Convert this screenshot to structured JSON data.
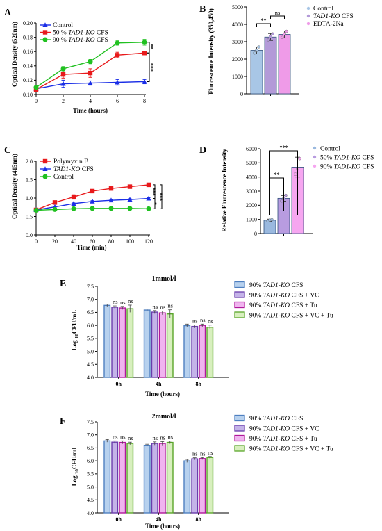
{
  "colors": {
    "red": "#e8191b",
    "blue": "#1a2ee6",
    "green": "#21c121",
    "b_blue": "#a8c6e6",
    "b_purple": "#b39ad8",
    "b_pink": "#ef9be8",
    "d_blue": "#9ab9df",
    "d_purple": "#b89ce0",
    "d_pink": "#f6a6f0",
    "e_blue": "#b7d1ee",
    "e_purple": "#c4b3e8",
    "e_pink": "#f0b4ef",
    "e_green": "#d8efbe",
    "e_blue_edge": "#4e7fc0",
    "e_purple_edge": "#6a3dac",
    "e_pink_edge": "#b0189a",
    "e_green_edge": "#5aa62a"
  },
  "chart_data": [
    {
      "id": "A",
      "panel_label": "A",
      "type": "line",
      "xlabel": "Time (hours)",
      "ylabel": "Optical Density (520nm)",
      "xlim": [
        0,
        8
      ],
      "ylim": [
        0.1,
        0.2
      ],
      "xticks": [
        "0",
        "2",
        "4",
        "6",
        "8"
      ],
      "yticks": [
        "0.10",
        "0.12",
        "0.14",
        "0.16",
        "0.18",
        "0.20"
      ],
      "x": [
        0,
        2,
        4,
        6,
        8
      ],
      "series": [
        {
          "name": "Control",
          "color": "blue",
          "marker": "triangle",
          "values": [
            0.108,
            0.115,
            0.116,
            0.117,
            0.118
          ],
          "err": [
            0.003,
            0.005,
            0.003,
            0.004,
            0.003
          ]
        },
        {
          "name": "50 % TAD1-KO CFS",
          "color": "red",
          "marker": "square",
          "values": [
            0.107,
            0.128,
            0.13,
            0.155,
            0.158
          ],
          "err": [
            0.002,
            0.005,
            0.006,
            0.004,
            0.002
          ]
        },
        {
          "name": "90 % TAD1-KO CFS",
          "color": "green",
          "marker": "circle",
          "values": [
            0.11,
            0.136,
            0.146,
            0.172,
            0.173
          ],
          "err": [
            0.002,
            0.003,
            0.003,
            0.003,
            0.004
          ]
        }
      ],
      "significance": [
        "**",
        "***"
      ]
    },
    {
      "id": "B",
      "panel_label": "B",
      "type": "bar",
      "ylabel": "Fluorescence Intensity (350,450)",
      "ylim": [
        0,
        5000
      ],
      "yticks": [
        "0",
        "1000",
        "2000",
        "3000",
        "4000",
        "5000"
      ],
      "series": [
        {
          "name": "Control",
          "color": "b_blue",
          "value": 2500,
          "err": 200,
          "points": [
            2350,
            2500,
            2700
          ]
        },
        {
          "name": "TAD1-KO CFS",
          "color": "b_purple",
          "value": 3270,
          "err": 200,
          "points": [
            3100,
            3300,
            3450
          ]
        },
        {
          "name": "EDTA-2Na",
          "color": "b_pink",
          "value": 3420,
          "err": 200,
          "points": [
            3250,
            3450,
            3600
          ]
        }
      ],
      "significance": [
        "**",
        "ns"
      ]
    },
    {
      "id": "C",
      "panel_label": "C",
      "type": "line",
      "xlabel": "Time (min)",
      "ylabel": "Optical Density (415nm)",
      "xlim": [
        0,
        120
      ],
      "ylim": [
        0.0,
        2.0
      ],
      "xticks": [
        "0",
        "20",
        "40",
        "60",
        "80",
        "100",
        "120"
      ],
      "yticks": [
        "0.0",
        "0.5",
        "1.0",
        "1.5",
        "2.0"
      ],
      "x": [
        0,
        20,
        40,
        60,
        80,
        100,
        120
      ],
      "series": [
        {
          "name": "Polymyxin B",
          "color": "red",
          "marker": "square",
          "values": [
            0.68,
            0.88,
            1.03,
            1.19,
            1.26,
            1.31,
            1.36
          ],
          "err": [
            0.03,
            0.04,
            0.06,
            0.03,
            0.02,
            0.02,
            0.02
          ]
        },
        {
          "name": "TAD1-KO CFS",
          "color": "blue",
          "marker": "triangle",
          "values": [
            0.68,
            0.76,
            0.85,
            0.91,
            0.94,
            0.96,
            0.99
          ],
          "err": [
            0.02,
            0.02,
            0.02,
            0.02,
            0.02,
            0.02,
            0.02
          ]
        },
        {
          "name": "Control",
          "color": "green",
          "marker": "circle",
          "values": [
            0.67,
            0.69,
            0.71,
            0.72,
            0.72,
            0.72,
            0.71
          ],
          "err": [
            0.01,
            0.01,
            0.01,
            0.01,
            0.01,
            0.01,
            0.01
          ]
        }
      ],
      "significance": [
        "***",
        "*",
        "***"
      ]
    },
    {
      "id": "D",
      "panel_label": "D",
      "type": "bar",
      "ylabel": "Relative Fluorescence Intensity",
      "ylim": [
        0,
        6000
      ],
      "yticks": [
        "0",
        "1000",
        "2000",
        "3000",
        "4000",
        "5000",
        "6000"
      ],
      "series": [
        {
          "name": "Control",
          "color": "d_blue",
          "value": 940,
          "err": 80,
          "points": [
            900,
            950,
            980
          ]
        },
        {
          "name": "50% TAD1-KO CFS",
          "color": "d_purple",
          "value": 2490,
          "err": 200,
          "points": [
            2300,
            2500,
            2700
          ]
        },
        {
          "name": "90% TAD1-KO CFS",
          "color": "d_pink",
          "value": 4700,
          "err": 700,
          "points": [
            4200,
            4600,
            5300
          ]
        }
      ],
      "significance": [
        "**",
        "***"
      ]
    },
    {
      "id": "E",
      "panel_label": "E",
      "type": "bar",
      "title": "1mmol/l",
      "xlabel": "Time (hours)",
      "ylabel": "Log10CFU/mL",
      "ylim": [
        4.0,
        7.5
      ],
      "yticks": [
        "4.0",
        "4.5",
        "5.0",
        "5.5",
        "6.0",
        "6.5",
        "7.0",
        "7.5"
      ],
      "categories": [
        "0h",
        "4h",
        "8h"
      ],
      "series": [
        {
          "name": "90% TAD1-KO CFS",
          "color": "e_blue",
          "edge": "e_blue_edge",
          "values": [
            6.77,
            6.59,
            5.99
          ],
          "err": [
            0.05,
            0.04,
            0.06
          ]
        },
        {
          "name": "90% TAD1-KO CFS + VC",
          "color": "e_purple",
          "edge": "e_purple_edge",
          "values": [
            6.7,
            6.51,
            5.96
          ],
          "err": [
            0.05,
            0.06,
            0.06
          ]
        },
        {
          "name": "90% TAD1-KO CFS + Tu",
          "color": "e_pink",
          "edge": "e_pink_edge",
          "values": [
            6.67,
            6.48,
            6.0
          ],
          "err": [
            0.06,
            0.07,
            0.05
          ]
        },
        {
          "name": "90% TAD1-KO CFS + VC + Tu",
          "color": "e_green",
          "edge": "e_green_edge",
          "values": [
            6.64,
            6.44,
            5.93
          ],
          "err": [
            0.14,
            0.16,
            0.08
          ]
        }
      ],
      "ns_label": "ns"
    },
    {
      "id": "F",
      "panel_label": "F",
      "type": "bar",
      "title": "2mmol/l",
      "xlabel": "Time (hours)",
      "ylabel": "Log10CFU/mL",
      "ylim": [
        4.0,
        7.5
      ],
      "yticks": [
        "4.0",
        "4.5",
        "5.0",
        "5.5",
        "6.0",
        "6.5",
        "7.0",
        "7.5"
      ],
      "categories": [
        "0h",
        "4h",
        "8h"
      ],
      "series": [
        {
          "name": "90% TAD1-KO CFS",
          "color": "e_blue",
          "edge": "e_blue_edge",
          "values": [
            6.77,
            6.6,
            6.0
          ],
          "err": [
            0.05,
            0.04,
            0.06
          ]
        },
        {
          "name": "90% TAD1-KO CFS + VC",
          "color": "e_purple",
          "edge": "e_purple_edge",
          "values": [
            6.72,
            6.67,
            6.08
          ],
          "err": [
            0.05,
            0.06,
            0.04
          ]
        },
        {
          "name": "90% TAD1-KO CFS + Tu",
          "color": "e_pink",
          "edge": "e_pink_edge",
          "values": [
            6.71,
            6.67,
            6.09
          ],
          "err": [
            0.06,
            0.07,
            0.04
          ]
        },
        {
          "name": "90% TAD1-KO CFS + VC + Tu",
          "color": "e_green",
          "edge": "e_green_edge",
          "values": [
            6.67,
            6.71,
            6.13
          ],
          "err": [
            0.05,
            0.05,
            0.04
          ]
        }
      ],
      "ns_label": "ns"
    }
  ]
}
